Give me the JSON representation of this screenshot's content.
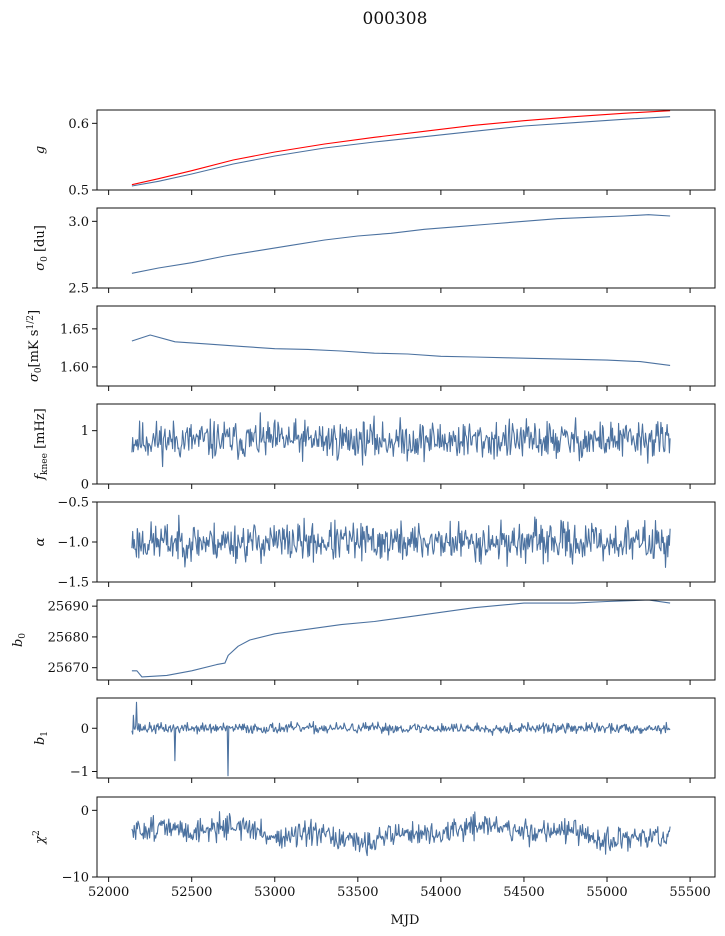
{
  "figure": {
    "title": "000308",
    "xlabel": "MJD",
    "xlim": [
      51930,
      55650
    ],
    "xticks": [
      52000,
      52500,
      53000,
      53500,
      54000,
      54500,
      55000,
      55500
    ],
    "xtick_labels": [
      "52000",
      "52500",
      "53000",
      "53500",
      "54000",
      "54500",
      "55000",
      "55500"
    ],
    "colors": {
      "main": "#4c72a0",
      "highlight": "#ff0000",
      "axes": "#111111"
    }
  },
  "chart_data": [
    {
      "type": "line",
      "ylabel": "g",
      "ylim": [
        0.5,
        0.62
      ],
      "yticks": [
        0.5,
        0.6
      ],
      "ytick_labels": [
        "0.5",
        "0.6"
      ],
      "series": [
        {
          "color": "#ff0000",
          "width": 3,
          "x": [
            52140,
            52300,
            52500,
            52750,
            53000,
            53300,
            53600,
            53900,
            54200,
            54500,
            54800,
            55100,
            55380
          ],
          "y": [
            0.508,
            0.517,
            0.529,
            0.545,
            0.557,
            0.569,
            0.579,
            0.588,
            0.597,
            0.604,
            0.61,
            0.615,
            0.619
          ]
        },
        {
          "color": "#4c72a0",
          "width": 1.2,
          "x": [
            52140,
            52300,
            52500,
            52750,
            53000,
            53300,
            53600,
            53900,
            54200,
            54500,
            54800,
            55100,
            55380
          ],
          "y": [
            0.506,
            0.513,
            0.524,
            0.539,
            0.551,
            0.563,
            0.572,
            0.58,
            0.588,
            0.596,
            0.601,
            0.606,
            0.61
          ]
        }
      ]
    },
    {
      "type": "line",
      "ylabel": "σ0 [du]",
      "ylim": [
        2.5,
        3.1
      ],
      "yticks": [
        2.5,
        3.0
      ],
      "ytick_labels": [
        "2.5",
        "3.0"
      ],
      "series": [
        {
          "color": "#4c72a0",
          "width": 1.1,
          "x": [
            52140,
            52300,
            52500,
            52700,
            52900,
            53100,
            53300,
            53500,
            53700,
            53900,
            54100,
            54300,
            54500,
            54700,
            54900,
            55100,
            55250,
            55380
          ],
          "y": [
            2.61,
            2.65,
            2.69,
            2.74,
            2.78,
            2.82,
            2.86,
            2.89,
            2.91,
            2.94,
            2.96,
            2.98,
            3.0,
            3.02,
            3.03,
            3.04,
            3.05,
            3.04
          ]
        }
      ]
    },
    {
      "type": "line",
      "ylabel": "σ0[mK s^1/2]",
      "ylim": [
        1.575,
        1.68
      ],
      "yticks": [
        1.6,
        1.65
      ],
      "ytick_labels": [
        "1.60",
        "1.65"
      ],
      "series": [
        {
          "color": "#4c72a0",
          "width": 1.1,
          "x": [
            52140,
            52250,
            52400,
            52600,
            52800,
            53000,
            53200,
            53400,
            53600,
            53800,
            54000,
            54200,
            54400,
            54600,
            54800,
            55000,
            55200,
            55380
          ],
          "y": [
            1.634,
            1.642,
            1.633,
            1.63,
            1.627,
            1.624,
            1.623,
            1.621,
            1.618,
            1.617,
            1.614,
            1.613,
            1.612,
            1.611,
            1.61,
            1.609,
            1.607,
            1.602
          ]
        }
      ]
    },
    {
      "type": "line",
      "ylabel": "f_knee [mHz]",
      "ylim": [
        0,
        1.5
      ],
      "yticks": [
        0,
        1
      ],
      "ytick_labels": [
        "0",
        "1"
      ],
      "series": [
        {
          "color": "#4c72a0",
          "width": 1,
          "noise": true,
          "x_range": [
            52140,
            55380
          ],
          "mean": 0.82,
          "amplitude": 0.18,
          "seed": 11
        }
      ]
    },
    {
      "type": "line",
      "ylabel": "α",
      "ylim": [
        -1.5,
        -0.5
      ],
      "yticks": [
        -1.5,
        -1.0,
        -0.5
      ],
      "ytick_labels": [
        "−1.5",
        "−1.0",
        "−0.5"
      ],
      "series": [
        {
          "color": "#4c72a0",
          "width": 1,
          "noise": true,
          "x_range": [
            52140,
            55380
          ],
          "mean": -1.0,
          "amplitude": 0.12,
          "seed": 23
        }
      ]
    },
    {
      "type": "line",
      "ylabel": "b0",
      "ylim": [
        25666,
        25692
      ],
      "yticks": [
        25670,
        25680,
        25690
      ],
      "ytick_labels": [
        "25670",
        "25680",
        "25690"
      ],
      "series": [
        {
          "color": "#4c72a0",
          "width": 1.1,
          "x": [
            52140,
            52170,
            52200,
            52350,
            52500,
            52650,
            52700,
            52720,
            52780,
            52850,
            53000,
            53200,
            53400,
            53600,
            53800,
            54000,
            54200,
            54500,
            54800,
            55000,
            55250,
            55380
          ],
          "y": [
            25669,
            25669,
            25667,
            25667.5,
            25669,
            25671,
            25671.5,
            25674,
            25677,
            25679,
            25681,
            25682.5,
            25684,
            25685,
            25686.5,
            25688,
            25689.5,
            25691,
            25691,
            25691.5,
            25692,
            25691
          ]
        }
      ]
    },
    {
      "type": "line",
      "ylabel": "b1",
      "ylim": [
        -1.15,
        0.7
      ],
      "yticks": [
        -1,
        0
      ],
      "ytick_labels": [
        "−1",
        "0"
      ],
      "series": [
        {
          "color": "#4c72a0",
          "width": 1,
          "noise": true,
          "x_range": [
            52140,
            55380
          ],
          "mean": 0.0,
          "amplitude": 0.06,
          "seed": 37,
          "spikes": [
            [
              52170,
              0.6
            ],
            [
              52150,
              0.3
            ],
            [
              52400,
              -0.75
            ],
            [
              52720,
              -1.1
            ]
          ]
        }
      ]
    },
    {
      "type": "line",
      "ylabel": "χ2",
      "ylim": [
        -10,
        2
      ],
      "yticks": [
        -10,
        0
      ],
      "ytick_labels": [
        "−10",
        "0"
      ],
      "series": [
        {
          "color": "#4c72a0",
          "width": 1,
          "noise": true,
          "x_range": [
            52140,
            55380
          ],
          "mean": -3.5,
          "amplitude": 0.9,
          "seed": 51,
          "drift": true
        }
      ]
    }
  ]
}
